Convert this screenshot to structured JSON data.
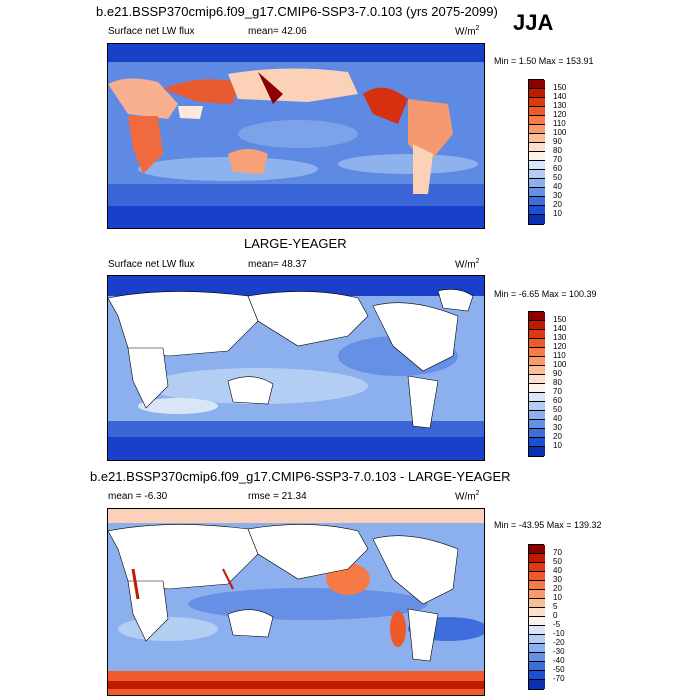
{
  "season": "JJA",
  "panel1": {
    "title": "b.e21.BSSP370cmip6.f09_g17.CMIP6-SSP3-7.0.103 (yrs 2075-2099)",
    "variable": "Surface net LW flux",
    "mean": "mean=  42.06",
    "units_base": "W/m",
    "units_exp": "2",
    "minmax": "Min =   1.50 Max = 153.91"
  },
  "panel2": {
    "title": "LARGE-YEAGER",
    "variable": "Surface net LW flux",
    "mean": "mean=  48.37",
    "units_base": "W/m",
    "units_exp": "2",
    "minmax": "Min =  -6.65 Max = 100.39"
  },
  "panel3": {
    "title": "b.e21.BSSP370cmip6.f09_g17.CMIP6-SSP3-7.0.103 - LARGE-YEAGER",
    "mean": "mean =  -6.30",
    "rmse": "rmse =  21.34",
    "units_base": "W/m",
    "units_exp": "2",
    "minmax": "Min = -43.95 Max = 139.32"
  },
  "colorbar_abs": {
    "labels": [
      "150",
      "140",
      "130",
      "120",
      "110",
      "100",
      "90",
      "80",
      "70",
      "60",
      "50",
      "40",
      "30",
      "20",
      "10"
    ],
    "colors": [
      "#8b0000",
      "#c01a00",
      "#dc3a10",
      "#ee5a28",
      "#f57a45",
      "#f99a6a",
      "#fbbd98",
      "#fde0cc",
      "#fdf3ea",
      "#d8e6f8",
      "#b4cdf3",
      "#8cb0ee",
      "#6690e6",
      "#3f6edc",
      "#1e4fd2",
      "#0a2fb0"
    ]
  },
  "colorbar_diff": {
    "labels": [
      "70",
      "50",
      "40",
      "30",
      "20",
      "10",
      "5",
      "0",
      "-5",
      "-10",
      "-20",
      "-30",
      "-40",
      "-50",
      "-70"
    ],
    "colors": [
      "#8b0000",
      "#c01a00",
      "#dc3a10",
      "#ee5a28",
      "#f57a45",
      "#f99a6a",
      "#fbbd98",
      "#fde0cc",
      "#fdf3ea",
      "#d8e6f8",
      "#b4cdf3",
      "#8cb0ee",
      "#6690e6",
      "#3f6edc",
      "#1e4fd2",
      "#0a2fb0"
    ]
  },
  "chart_data": [
    {
      "type": "heatmap",
      "title": "b.e21.BSSP370cmip6.f09_g17.CMIP6-SSP3-7.0.103 (yrs 2075-2099)",
      "variable": "Surface net LW flux",
      "units": "W/m2",
      "mean": 42.06,
      "min": 1.5,
      "max": 153.91,
      "colorbar_levels": [
        10,
        20,
        30,
        40,
        50,
        60,
        70,
        80,
        90,
        100,
        110,
        120,
        130,
        140,
        150
      ]
    },
    {
      "type": "heatmap",
      "title": "LARGE-YEAGER",
      "variable": "Surface net LW flux",
      "units": "W/m2",
      "mean": 48.37,
      "min": -6.65,
      "max": 100.39,
      "colorbar_levels": [
        10,
        20,
        30,
        40,
        50,
        60,
        70,
        80,
        90,
        100,
        110,
        120,
        130,
        140,
        150
      ]
    },
    {
      "type": "heatmap",
      "title": "b.e21.BSSP370cmip6.f09_g17.CMIP6-SSP3-7.0.103 - LARGE-YEAGER",
      "units": "W/m2",
      "mean": -6.3,
      "rmse": 21.34,
      "min": -43.95,
      "max": 139.32,
      "colorbar_levels": [
        -70,
        -50,
        -40,
        -30,
        -20,
        -10,
        -5,
        0,
        5,
        10,
        20,
        30,
        40,
        50,
        70
      ]
    }
  ]
}
